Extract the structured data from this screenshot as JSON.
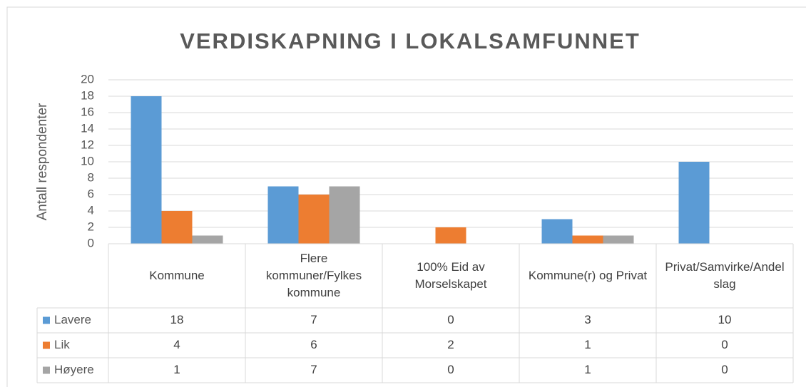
{
  "chart_data": {
    "type": "bar",
    "title": "VERDISKAPNING  I LOKALSAMFUNNET",
    "y_label": "Antall respondenter",
    "categories": [
      "Kommune",
      "Flere kommuner/Fylkes kommune",
      "100% Eid av Morselskapet",
      "Kommune(r) og Privat",
      "Privat/Samvirke/Andelslag"
    ],
    "series": [
      {
        "name": "Lavere",
        "color": "#5b9bd5",
        "values": [
          18,
          7,
          0,
          3,
          10
        ]
      },
      {
        "name": "Lik",
        "color": "#ed7d31",
        "values": [
          4,
          6,
          2,
          1,
          0
        ]
      },
      {
        "name": "Høyere",
        "color": "#a5a5a5",
        "values": [
          1,
          7,
          0,
          1,
          0
        ]
      }
    ],
    "ylim": [
      0,
      20
    ],
    "yticks": [
      0,
      2,
      4,
      6,
      8,
      10,
      12,
      14,
      16,
      18,
      20
    ],
    "grid": true,
    "data_table": true
  }
}
